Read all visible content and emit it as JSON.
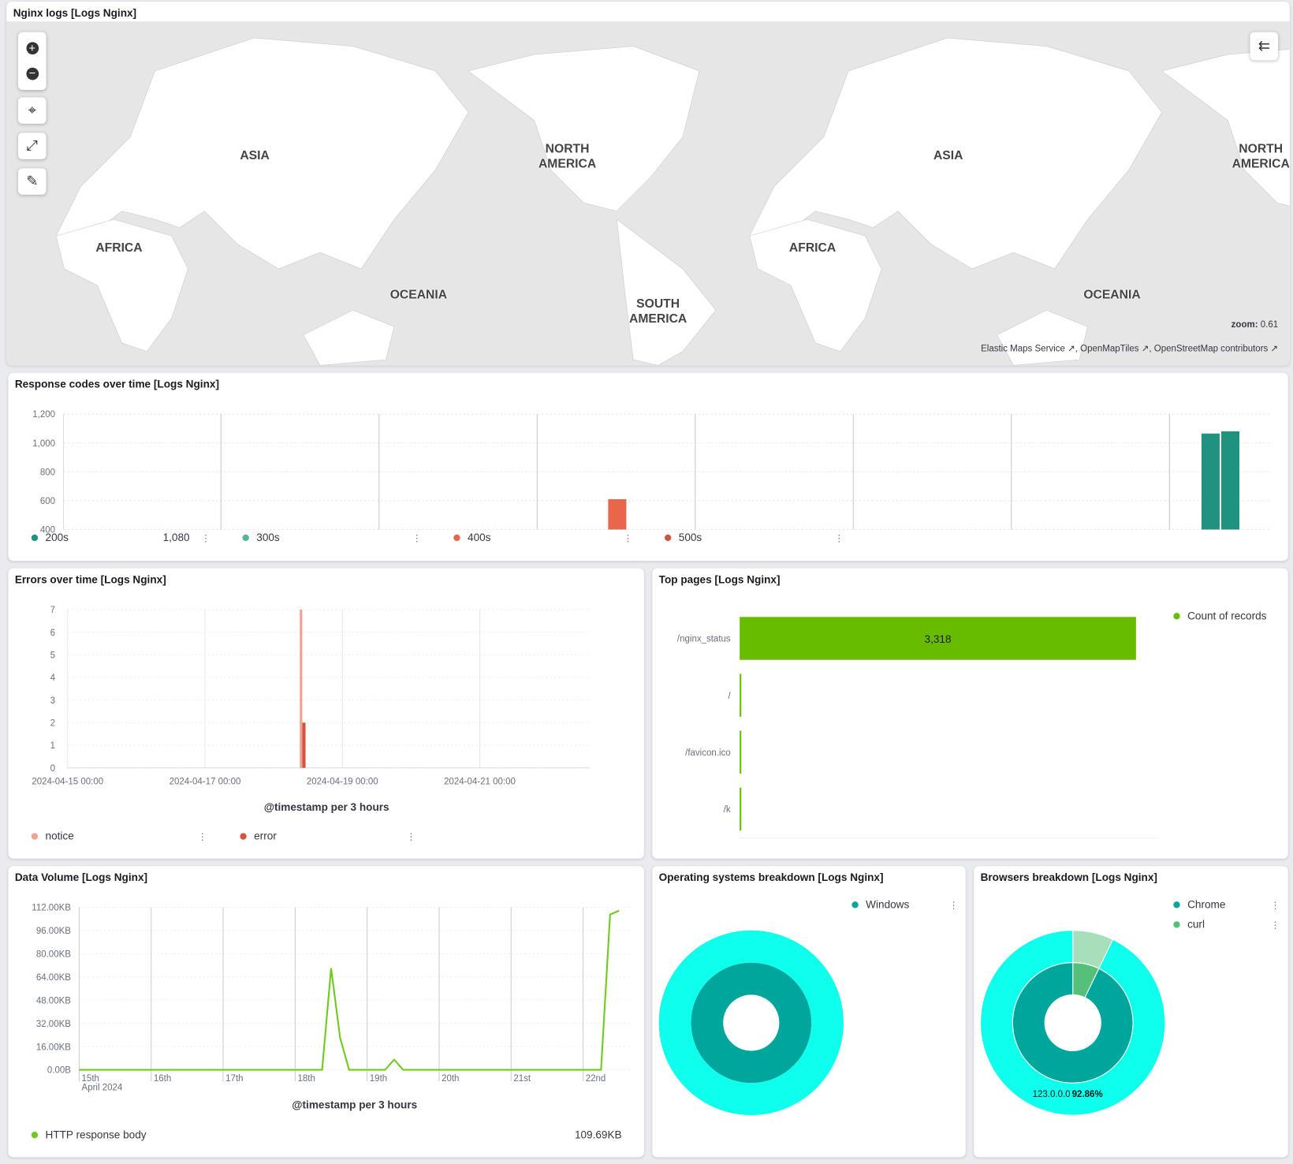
{
  "map_panel": {
    "title": "Nginx logs [Logs Nginx]",
    "labels": [
      "ASIA",
      "NORTH AMERICA",
      "AFRICA",
      "OCEANIA",
      "SOUTH AMERICA",
      "ASIA",
      "NORTH AMERICA",
      "AFRICA",
      "OCEANIA"
    ],
    "zoom_label": "zoom:",
    "zoom_value": "0.61",
    "attribution": [
      "Elastic Maps Service",
      "OpenMapTiles",
      "OpenStreetMap contributors"
    ],
    "tools": [
      "plus-icon",
      "minus-icon",
      "crosshair-icon",
      "measure-icon",
      "draw-tool-icon"
    ],
    "layers_toggle_icon": "collapse-layers-icon"
  },
  "chart_data": [
    {
      "id": "response_codes",
      "type": "bar",
      "title": "Response codes over time [Logs Nginx]",
      "ylim": [
        400,
        1200
      ],
      "yticks": [
        "400",
        "600",
        "800",
        "1,000",
        "1,200"
      ],
      "series": [
        {
          "name": "200s",
          "color": "#209280",
          "value_label": "1,080",
          "points": [
            {
              "x": "2024-04-22 06:00",
              "y": 1065
            },
            {
              "x": "2024-04-22 09:00",
              "y": 1080
            }
          ]
        },
        {
          "name": "300s",
          "color": "#54B399",
          "points": []
        },
        {
          "name": "400s",
          "color": "#E7664C",
          "points": [
            {
              "x": "2024-04-18 12:00",
              "y": 610
            }
          ]
        },
        {
          "name": "500s",
          "color": "#CC5642",
          "points": []
        }
      ]
    },
    {
      "id": "errors",
      "type": "bar",
      "title": "Errors over time [Logs Nginx]",
      "xlabel": "@timestamp per 3 hours",
      "ylim": [
        0,
        7
      ],
      "xticks": [
        "2024-04-15 00:00",
        "2024-04-17 00:00",
        "2024-04-19 00:00",
        "2024-04-21 00:00"
      ],
      "series": [
        {
          "name": "notice",
          "color": "#F1A293",
          "points": [
            {
              "x": "2024-04-18 12:00",
              "y": 7
            }
          ]
        },
        {
          "name": "error",
          "color": "#D6533F",
          "points": [
            {
              "x": "2024-04-18 12:00",
              "y": 2
            }
          ]
        }
      ]
    },
    {
      "id": "top_pages",
      "type": "bar",
      "orientation": "horizontal",
      "title": "Top pages [Logs Nginx]",
      "xlim": [
        0,
        3500
      ],
      "categories": [
        "/nginx_status",
        "/",
        "/favicon.ico",
        "/k"
      ],
      "series": [
        {
          "name": "Count of records",
          "color": "#68BC00",
          "values": [
            3318,
            1,
            1,
            1
          ],
          "data_labels": [
            "3,318",
            "",
            "",
            ""
          ]
        }
      ]
    },
    {
      "id": "data_volume",
      "type": "line",
      "title": "Data Volume [Logs Nginx]",
      "xlabel": "@timestamp per 3 hours",
      "ylim": [
        0,
        112
      ],
      "yticks": [
        "0.00B",
        "16.00KB",
        "32.00KB",
        "48.00KB",
        "64.00KB",
        "80.00KB",
        "96.00KB",
        "112.00KB"
      ],
      "xticks": [
        "15th",
        "16th",
        "17th",
        "18th",
        "19th",
        "20th",
        "21st",
        "22nd"
      ],
      "xsub": "April 2024",
      "series": [
        {
          "name": "HTTP response body",
          "color": "#6DCC1B",
          "value_label": "109.69KB",
          "points": [
            {
              "x": "2024-04-15 00:00",
              "y": 0
            },
            {
              "x": "2024-04-18 09:00",
              "y": 0
            },
            {
              "x": "2024-04-18 12:00",
              "y": 70
            },
            {
              "x": "2024-04-18 15:00",
              "y": 22
            },
            {
              "x": "2024-04-18 18:00",
              "y": 0
            },
            {
              "x": "2024-04-19 06:00",
              "y": 0
            },
            {
              "x": "2024-04-19 09:00",
              "y": 7
            },
            {
              "x": "2024-04-19 12:00",
              "y": 0
            },
            {
              "x": "2024-04-22 06:00",
              "y": 0
            },
            {
              "x": "2024-04-22 09:00",
              "y": 107
            },
            {
              "x": "2024-04-22 12:00",
              "y": 109.69
            }
          ]
        }
      ]
    },
    {
      "id": "os",
      "type": "pie",
      "title": "Operating systems breakdown [Logs Nginx]",
      "donut": true,
      "rings": [
        {
          "level": "inner",
          "slices": [
            {
              "name": "Windows",
              "value": 100,
              "color": "#00A69B"
            }
          ]
        },
        {
          "level": "outer",
          "slices": [
            {
              "name": "",
              "value": 100,
              "color": "#0EFFEB"
            }
          ]
        }
      ],
      "legend": [
        "Windows"
      ]
    },
    {
      "id": "browsers",
      "type": "pie",
      "title": "Browsers breakdown [Logs Nginx]",
      "donut": true,
      "rings": [
        {
          "level": "inner",
          "slices": [
            {
              "name": "curl",
              "value": 7.14,
              "color": "#54C07A"
            },
            {
              "name": "Chrome",
              "value": 92.86,
              "color": "#00A69B"
            }
          ]
        },
        {
          "level": "outer",
          "slices": [
            {
              "name": "",
              "value": 7.14,
              "color": "#A6DFB9"
            },
            {
              "name": "123.0.0.0",
              "value": 92.86,
              "color": "#0EFFEB"
            }
          ]
        }
      ],
      "legend": [
        "Chrome",
        "curl"
      ],
      "slice_label": "123.0.0.0",
      "slice_pct": "92.86%"
    }
  ]
}
